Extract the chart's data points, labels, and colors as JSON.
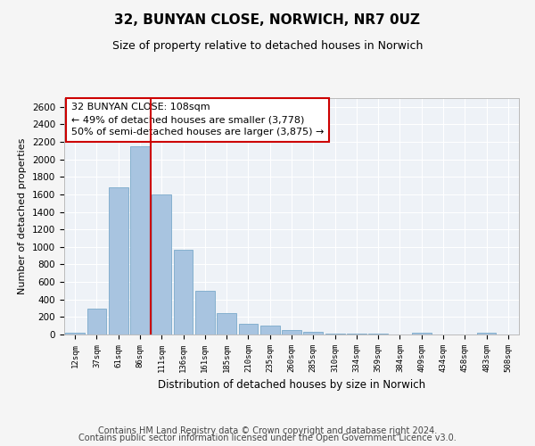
{
  "title": "32, BUNYAN CLOSE, NORWICH, NR7 0UZ",
  "subtitle": "Size of property relative to detached houses in Norwich",
  "xlabel": "Distribution of detached houses by size in Norwich",
  "ylabel": "Number of detached properties",
  "categories": [
    "12sqm",
    "37sqm",
    "61sqm",
    "86sqm",
    "111sqm",
    "136sqm",
    "161sqm",
    "185sqm",
    "210sqm",
    "235sqm",
    "260sqm",
    "285sqm",
    "310sqm",
    "334sqm",
    "359sqm",
    "384sqm",
    "409sqm",
    "434sqm",
    "458sqm",
    "483sqm",
    "508sqm"
  ],
  "values": [
    25,
    300,
    1680,
    2150,
    1600,
    970,
    500,
    248,
    120,
    100,
    50,
    30,
    10,
    15,
    8,
    5,
    20,
    5,
    3,
    25,
    5
  ],
  "bar_color": "#a8c4e0",
  "bar_edge_color": "#7aaaca",
  "highlight_line_color": "#cc0000",
  "annotation_box_text": "32 BUNYAN CLOSE: 108sqm\n← 49% of detached houses are smaller (3,778)\n50% of semi-detached houses are larger (3,875) →",
  "ylim": [
    0,
    2700
  ],
  "yticks": [
    0,
    200,
    400,
    600,
    800,
    1000,
    1200,
    1400,
    1600,
    1800,
    2000,
    2200,
    2400,
    2600
  ],
  "footer_line1": "Contains HM Land Registry data © Crown copyright and database right 2024.",
  "footer_line2": "Contains public sector information licensed under the Open Government Licence v3.0.",
  "bg_color": "#eef2f7",
  "grid_color": "#ffffff",
  "fig_bg_color": "#f5f5f5",
  "title_fontsize": 11,
  "subtitle_fontsize": 9,
  "annotation_fontsize": 8,
  "footer_fontsize": 7,
  "ylabel_fontsize": 8,
  "xlabel_fontsize": 8.5
}
